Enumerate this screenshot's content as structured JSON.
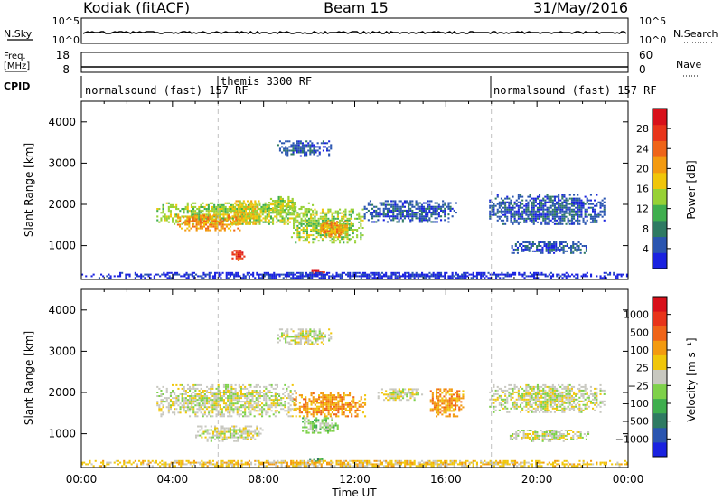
{
  "header": {
    "station": "Kodiak (fitACF)",
    "beam": "Beam 15",
    "date": "31/May/2016"
  },
  "strip_labels": {
    "nsky": "N.Sky",
    "freq_line1": "Freq.",
    "freq_line2": "[MHz]",
    "cpid": "CPID",
    "nsearch": "N.Search",
    "nave": "Nave"
  },
  "strip_ticks": {
    "nsky_left": [
      "10^5",
      "10^0"
    ],
    "nsky_right": [
      "10^5",
      "10^0"
    ],
    "freq_left": [
      "18",
      "8"
    ],
    "nave_right": [
      "60",
      "0"
    ]
  },
  "cpid_segments": [
    {
      "label": "normalsound (fast) 157 RF",
      "start_hour": 0,
      "end_hour": 6
    },
    {
      "label": "themis 3300 RF",
      "start_hour": 6,
      "end_hour": 18
    },
    {
      "label": "normalsound (fast) 157 RF",
      "start_hour": 18,
      "end_hour": 24
    }
  ],
  "chart_data": [
    {
      "type": "heatmap",
      "title": "",
      "xlabel": "Time UT",
      "ylabel": "Slant Range [km]",
      "xlim": [
        0,
        24
      ],
      "ylim": [
        180,
        4500
      ],
      "x_ticks": [
        "00:00",
        "04:00",
        "08:00",
        "12:00",
        "16:00",
        "20:00",
        "00:00"
      ],
      "y_ticks": [
        "1000",
        "2000",
        "3000",
        "4000"
      ],
      "colorbar": {
        "label": "Power [dB]",
        "ticks": [
          "4",
          "8",
          "12",
          "16",
          "20",
          "24",
          "28"
        ],
        "range": [
          0,
          30
        ],
        "colors": [
          "#1a22e0",
          "#2a55b0",
          "#2e7a62",
          "#3fae4e",
          "#97d135",
          "#f0c60a",
          "#f39a10",
          "#ef6418",
          "#e8341a",
          "#d8101a"
        ]
      },
      "echo_regions": [
        {
          "t0": 8.6,
          "t1": 11.0,
          "r0": 3150,
          "r1": 3550,
          "level": 1
        },
        {
          "t0": 3.3,
          "t1": 10.2,
          "r0": 1500,
          "r1": 2050,
          "level": 4
        },
        {
          "t0": 4.2,
          "t1": 7.0,
          "r0": 1350,
          "r1": 1750,
          "level": 6
        },
        {
          "t0": 6.6,
          "t1": 8.0,
          "r0": 1500,
          "r1": 2100,
          "level": 5
        },
        {
          "t0": 8.2,
          "t1": 9.4,
          "r0": 1750,
          "r1": 2200,
          "level": 4
        },
        {
          "t0": 9.2,
          "t1": 12.4,
          "r0": 1050,
          "r1": 1900,
          "level": 4
        },
        {
          "t0": 10.5,
          "t1": 11.7,
          "r0": 1200,
          "r1": 1600,
          "level": 6
        },
        {
          "t0": 6.6,
          "t1": 7.2,
          "r0": 620,
          "r1": 900,
          "level": 8
        },
        {
          "t0": 10.1,
          "t1": 10.7,
          "r0": 310,
          "r1": 410,
          "level": 8
        },
        {
          "t0": 12.4,
          "t1": 16.5,
          "r0": 1550,
          "r1": 2100,
          "level": 1
        },
        {
          "t0": 17.9,
          "t1": 23.0,
          "r0": 1500,
          "r1": 2250,
          "level": 1
        },
        {
          "t0": 18.7,
          "t1": 22.3,
          "r0": 800,
          "r1": 1100,
          "level": 1
        },
        {
          "t0": 0.0,
          "t1": 24.0,
          "r0": 200,
          "r1": 360,
          "level": 0
        }
      ]
    },
    {
      "type": "heatmap",
      "title": "",
      "xlabel": "Time UT",
      "ylabel": "Slant Range [km]",
      "xlim": [
        0,
        24
      ],
      "ylim": [
        180,
        4500
      ],
      "x_ticks": [
        "00:00",
        "04:00",
        "08:00",
        "12:00",
        "16:00",
        "20:00",
        "00:00"
      ],
      "y_ticks": [
        "1000",
        "2000",
        "3000",
        "4000"
      ],
      "colorbar": {
        "label": "Velocity [m s⁻¹]",
        "ticks": [
          "1000",
          "500",
          "100",
          "25",
          "−25",
          "−100",
          "−500",
          "−1000"
        ],
        "range": [
          -1000,
          1000
        ],
        "colors": [
          "#1a22e0",
          "#2a55b0",
          "#2e7a62",
          "#3fae4e",
          "#7ed14a",
          "#c8c8c0",
          "#f0c60a",
          "#f39a10",
          "#ef6418",
          "#e8341a",
          "#d8101a"
        ]
      },
      "echo_regions": [
        {
          "t0": 8.6,
          "t1": 11.0,
          "r0": 3150,
          "r1": 3550,
          "level": 5
        },
        {
          "t0": 3.3,
          "t1": 9.4,
          "r0": 1400,
          "r1": 2200,
          "level": 5
        },
        {
          "t0": 5.0,
          "t1": 8.0,
          "r0": 800,
          "r1": 1200,
          "level": 5
        },
        {
          "t0": 9.3,
          "t1": 12.5,
          "r0": 1400,
          "r1": 2000,
          "level": 7
        },
        {
          "t0": 9.6,
          "t1": 11.3,
          "r0": 1000,
          "r1": 1400,
          "level": 4
        },
        {
          "t0": 10.0,
          "t1": 10.7,
          "r0": 320,
          "r1": 420,
          "level": 3
        },
        {
          "t0": 15.3,
          "t1": 16.8,
          "r0": 1400,
          "r1": 2100,
          "level": 7
        },
        {
          "t0": 17.9,
          "t1": 23.0,
          "r0": 1500,
          "r1": 2200,
          "level": 5
        },
        {
          "t0": 18.8,
          "t1": 22.3,
          "r0": 800,
          "r1": 1100,
          "level": 5
        },
        {
          "t0": 13.0,
          "t1": 15.0,
          "r0": 1800,
          "r1": 2100,
          "level": 5
        },
        {
          "t0": 0.0,
          "t1": 24.0,
          "r0": 200,
          "r1": 360,
          "level": 6
        }
      ]
    }
  ]
}
